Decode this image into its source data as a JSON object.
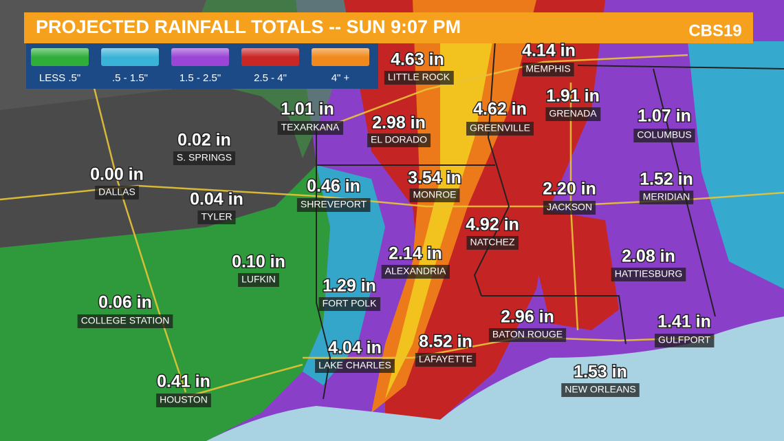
{
  "header": {
    "title": "PROJECTED RAINFALL TOTALS -- SUN 9:07 PM",
    "logo": "CBS19"
  },
  "legend": [
    {
      "label": "LESS .5\"",
      "color": "#2fae3a"
    },
    {
      "label": ".5 - 1.5\"",
      "color": "#3ab3d8"
    },
    {
      "label": "1.5 - 2.5\"",
      "color": "#9a45d6"
    },
    {
      "label": "2.5 - 4\"",
      "color": "#c92626"
    },
    {
      "label": "4\" +",
      "color": "#f08a1c"
    }
  ],
  "cities": [
    {
      "name": "LITTLE ROCK",
      "amount": "4.63 in"
    },
    {
      "name": "MEMPHIS",
      "amount": "4.14 in"
    },
    {
      "name": "TEXARKANA",
      "amount": "1.01 in"
    },
    {
      "name": "EL DORADO",
      "amount": "2.98 in"
    },
    {
      "name": "GREENVILLE",
      "amount": "4.62 in"
    },
    {
      "name": "GRENADA",
      "amount": "1.91 in"
    },
    {
      "name": "COLUMBUS",
      "amount": "1.07 in"
    },
    {
      "name": "S. SPRINGS",
      "amount": "0.02 in"
    },
    {
      "name": "DALLAS",
      "amount": "0.00 in"
    },
    {
      "name": "TYLER",
      "amount": "0.04 in"
    },
    {
      "name": "SHREVEPORT",
      "amount": "0.46 in"
    },
    {
      "name": "MONROE",
      "amount": "3.54 in"
    },
    {
      "name": "JACKSON",
      "amount": "2.20 in"
    },
    {
      "name": "MERIDIAN",
      "amount": "1.52 in"
    },
    {
      "name": "NATCHEZ",
      "amount": "4.92 in"
    },
    {
      "name": "LUFKIN",
      "amount": "0.10 in"
    },
    {
      "name": "ALEXANDRIA",
      "amount": "2.14 in"
    },
    {
      "name": "HATTIESBURG",
      "amount": "2.08 in"
    },
    {
      "name": "FORT POLK",
      "amount": "1.29 in"
    },
    {
      "name": "COLLEGE STATION",
      "amount": "0.06 in"
    },
    {
      "name": "BATON ROUGE",
      "amount": "2.96 in"
    },
    {
      "name": "GULFPORT",
      "amount": "1.41 in"
    },
    {
      "name": "LAKE CHARLES",
      "amount": "4.04 in"
    },
    {
      "name": "LAFAYETTE",
      "amount": "8.52 in"
    },
    {
      "name": "NEW ORLEANS",
      "amount": "1.53 in"
    },
    {
      "name": "HOUSTON",
      "amount": "0.41 in"
    }
  ]
}
